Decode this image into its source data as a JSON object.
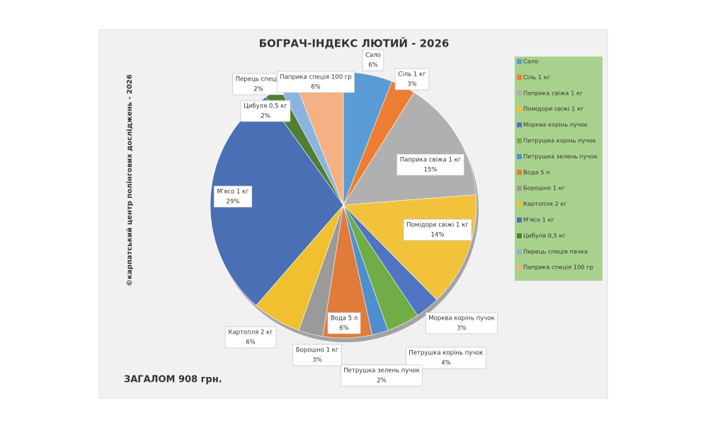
{
  "chart_data": {
    "type": "pie",
    "title": "БОГРАЧ-ІНДЕКС ЛЮТИЙ - 2026",
    "side_note": "©карпатський центр полінгових досліджень - 2026",
    "total_note": "ЗАГАЛОМ 908 грн.",
    "categories": [
      "Сало",
      "Сіль 1 кг",
      "Паприка свіжа 1 кг",
      "Помідори свіжі 1 кг",
      "Морква корінь пучок",
      "Петрушка корінь пучок",
      "Петрушка зелень пучок",
      "Вода 5 л",
      "Борошно 1 кг",
      "Картопля 2 кг",
      "М'ясо 1 кг",
      "Цибуля 0,5 кг",
      "Перець спеція пачка",
      "Паприка спеція 100 гр"
    ],
    "label_names": [
      "Сало",
      "Сіль 1 кг",
      "Паприка свіжа 1 кг",
      "Помідори свіжі 1 кг",
      "Морква корінь пучок",
      "Петрушка корінь пучок",
      "Петрушка зелень пучок",
      "Вода 5 л",
      "Борошно 1 кг",
      "Картопля 2 кг",
      "М'ясо 1 кг",
      "Цибуля 0,5 кг",
      "Перець спеція",
      "Паприка спеція 100 гр"
    ],
    "values": [
      6,
      3,
      15,
      14,
      3,
      4,
      2,
      6,
      3,
      6,
      29,
      2,
      2,
      6
    ],
    "value_labels": [
      "6%",
      "3%",
      "15%",
      "14%",
      "3%",
      "4%",
      "2%",
      "6%",
      "3%",
      "6%",
      "29%",
      "2%",
      "2%",
      "6%"
    ],
    "colors": [
      "#5b9bd5",
      "#ed7d31",
      "#b0b0b0",
      "#f2c23a",
      "#4f74c4",
      "#70ad47",
      "#4f8fd0",
      "#e07b39",
      "#9a9a9a",
      "#f0c030",
      "#4a6fb5",
      "#4f7f35",
      "#8ab4e0",
      "#f4b183"
    ],
    "legend": "right"
  }
}
